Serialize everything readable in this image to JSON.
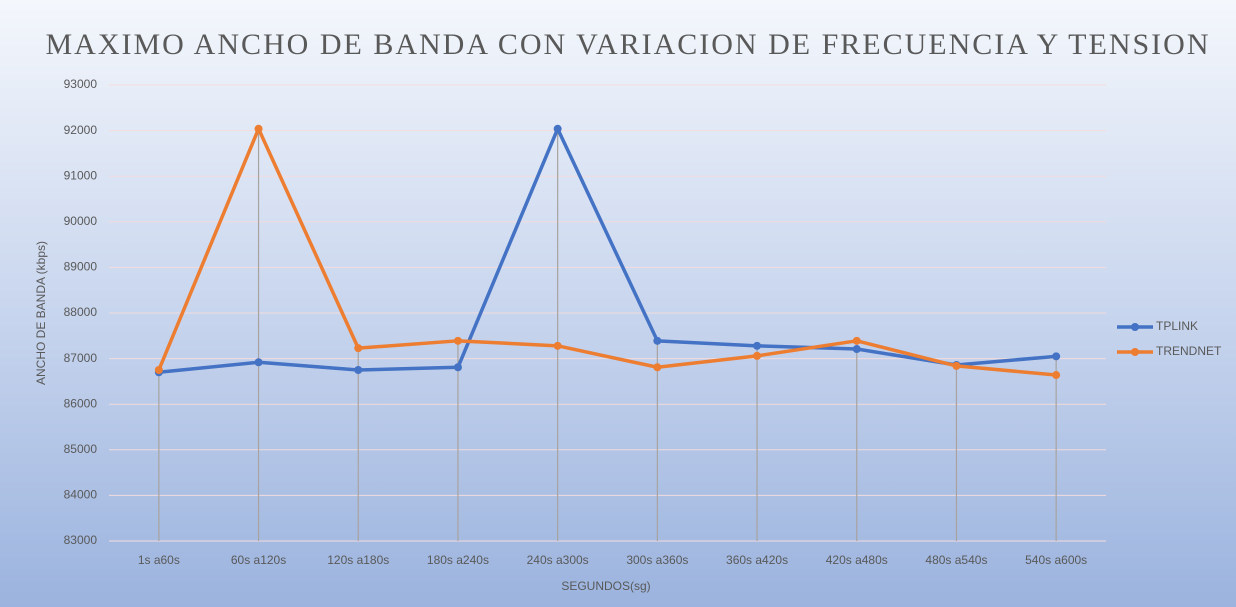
{
  "chart_data": {
    "type": "line",
    "title": "MAXIMO ANCHO DE BANDA CON VARIACION DE FRECUENCIA Y TENSION",
    "x_label": "SEGUNDOS(sg)",
    "y_label": "ANCHO DE BANDA (kbps)",
    "categories": [
      "1s a60s",
      "60s a120s",
      "120s a180s",
      "180s a240s",
      "240s a300s",
      "300s a360s",
      "360s a420s",
      "420s a480s",
      "480s a540s",
      "540s a600s"
    ],
    "series": [
      {
        "name": "TPLINK",
        "color": "#4472c4",
        "values": [
          86700,
          86920,
          86750,
          86810,
          92040,
          87390,
          87280,
          87210,
          86860,
          87050
        ]
      },
      {
        "name": "TRENDNET",
        "color": "#ed7d31",
        "values": [
          86750,
          92040,
          87230,
          87390,
          87280,
          86810,
          87060,
          87390,
          86840,
          86640
        ]
      }
    ],
    "ylim": [
      83000,
      93000
    ],
    "yticks": [
      83000,
      84000,
      85000,
      86000,
      87000,
      88000,
      89000,
      90000,
      91000,
      92000,
      93000
    ],
    "grid": true,
    "drop_lines": true,
    "legend": "right"
  }
}
